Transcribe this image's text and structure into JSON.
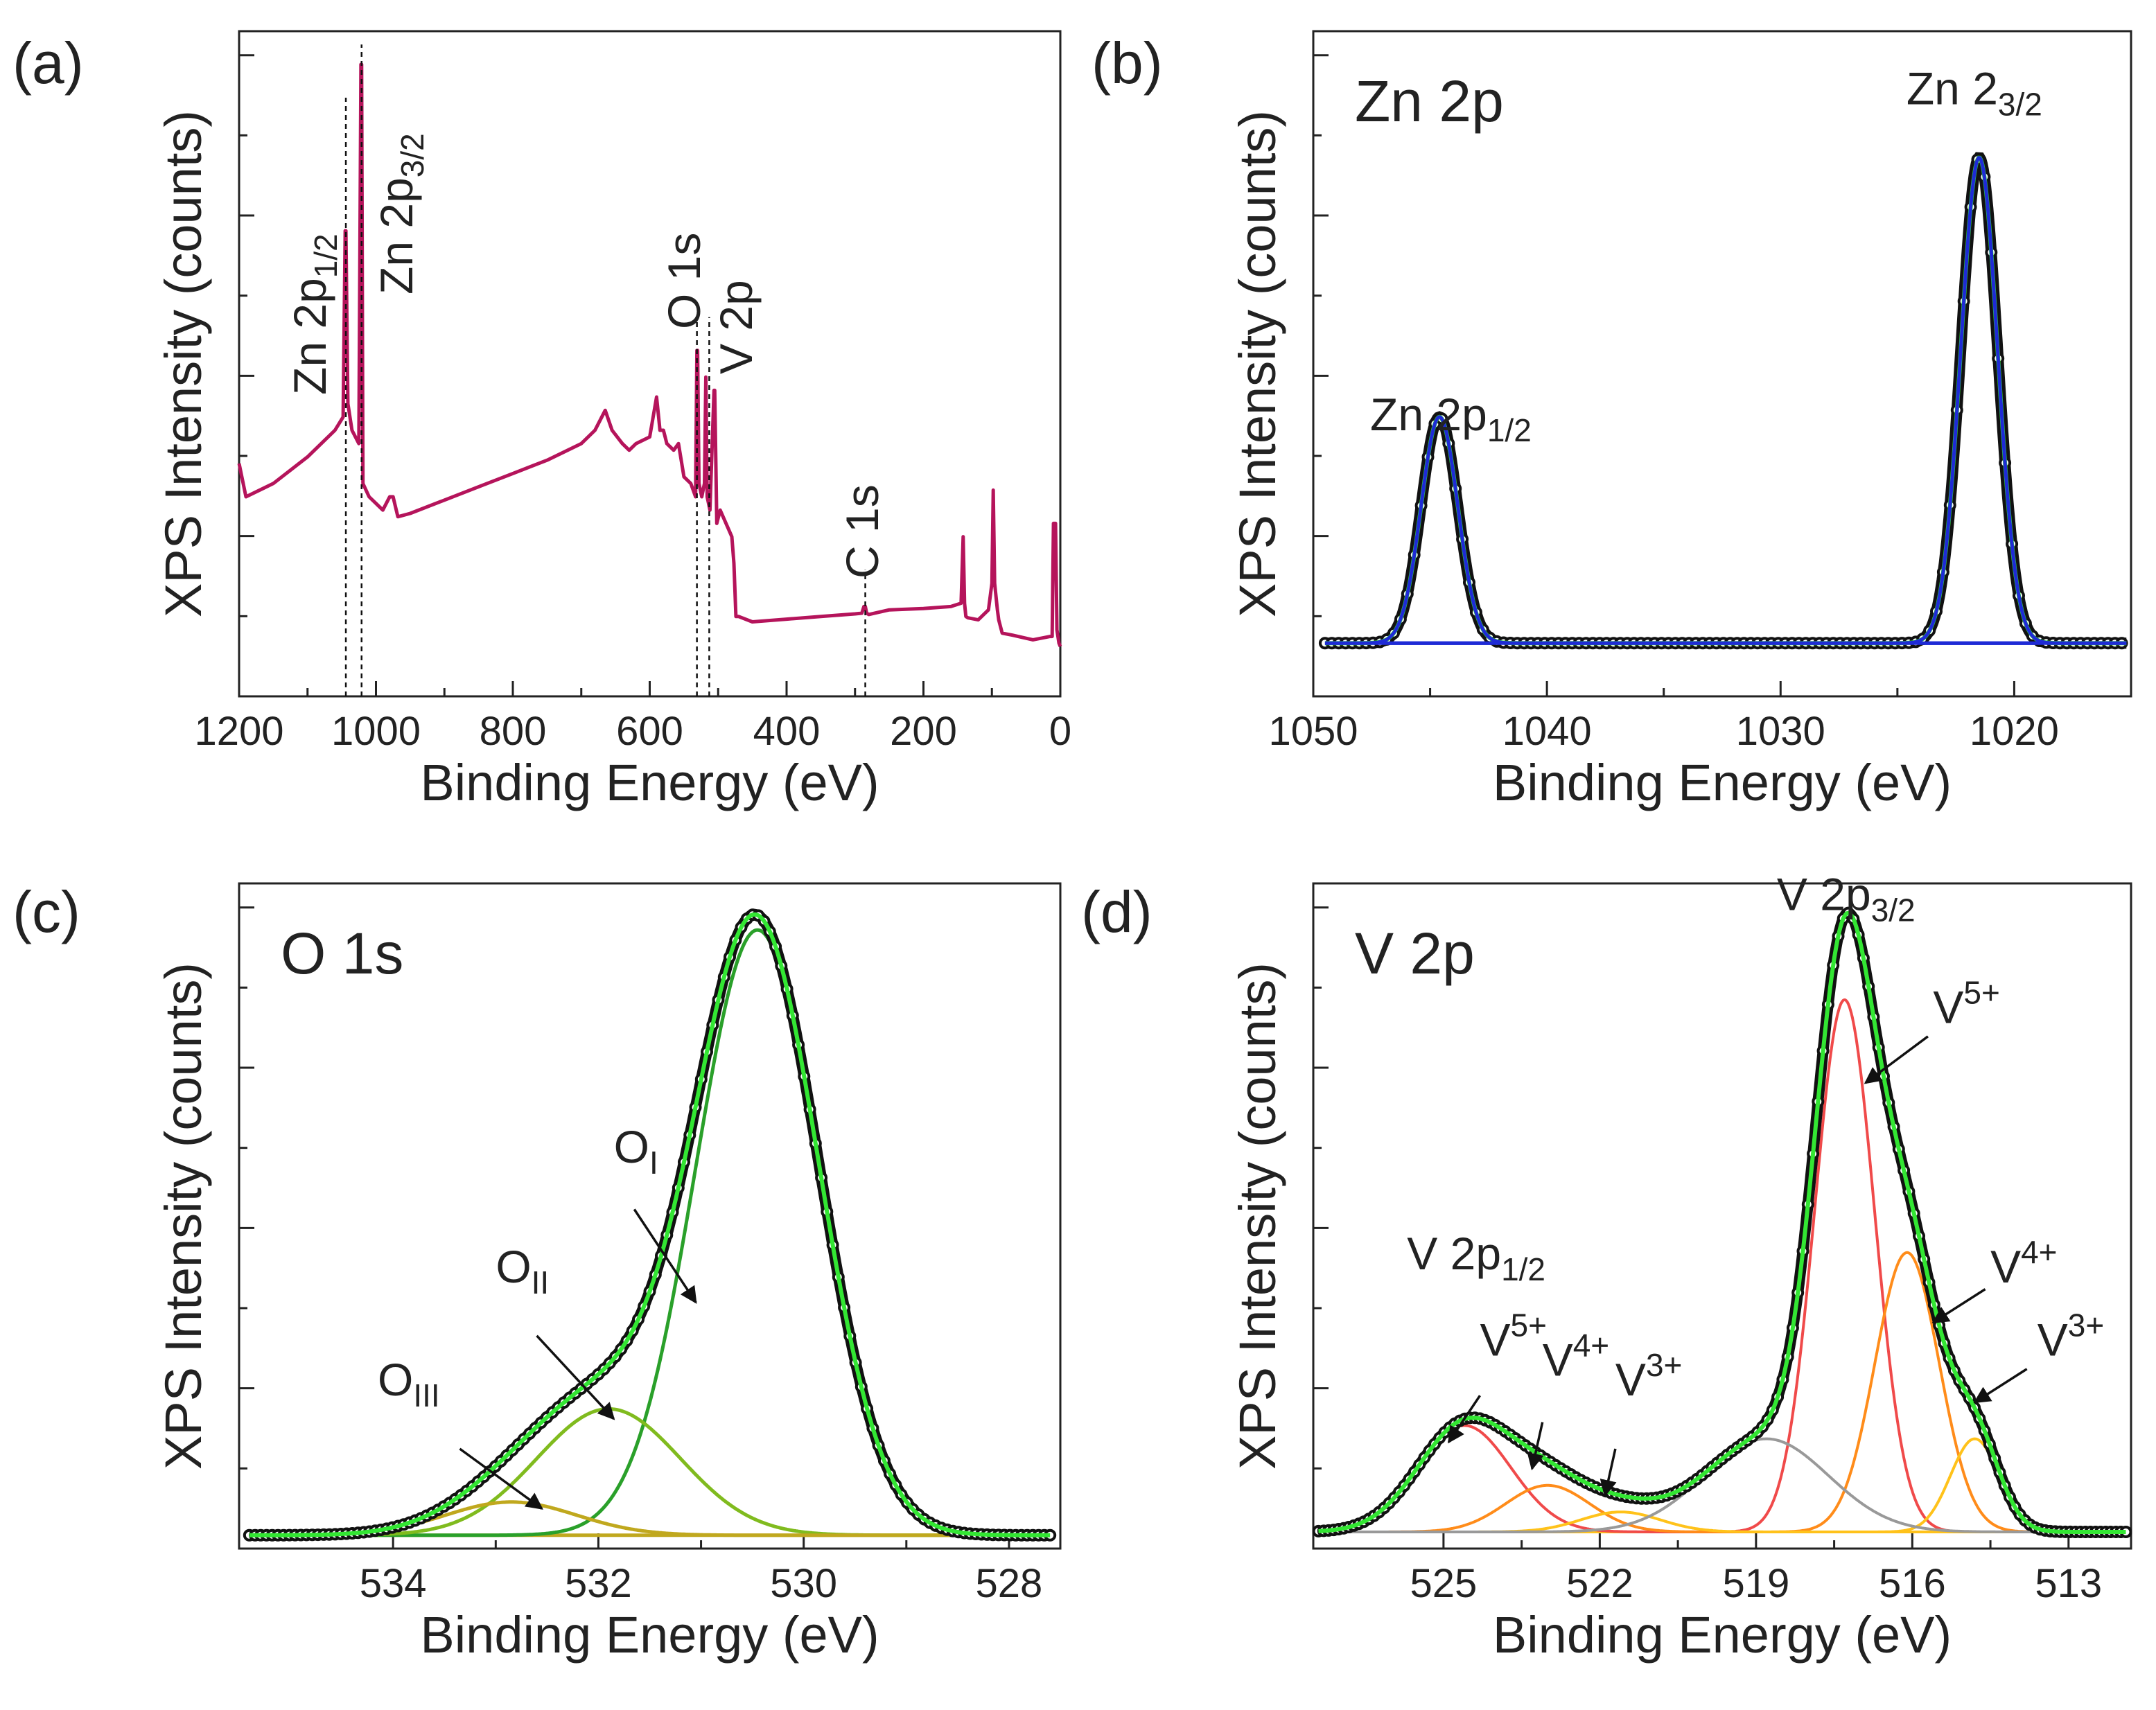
{
  "figure": {
    "panels": [
      {
        "id": "a",
        "letter": "(a)"
      },
      {
        "id": "b",
        "letter": "(b)"
      },
      {
        "id": "c",
        "letter": "(c)"
      },
      {
        "id": "d",
        "letter": "(d)"
      }
    ]
  },
  "colors": {
    "survey": "#b5145b",
    "data": "#111111",
    "envelope": "#33e633",
    "component_blue": "#1f2bd6",
    "O_I": "#2aa02a",
    "O_II": "#80bb1e",
    "O_III": "#c0a81e",
    "V5": "#f04a4a",
    "V4": "#ff8c1a",
    "V3": "#ffc21a",
    "background_gray": "#999999"
  },
  "chart_data": [
    {
      "id": "a",
      "type": "line",
      "title": "",
      "xlabel": "Binding Energy (eV)",
      "ylabel": "XPS Intensity (counts)",
      "xlim": [
        1200,
        0
      ],
      "ylim": [
        0,
        100
      ],
      "xticks": [
        1200,
        1000,
        800,
        600,
        400,
        200,
        0
      ],
      "series": [
        {
          "name": "Survey spectrum",
          "x": [
            1200,
            1190,
            1150,
            1100,
            1060,
            1048,
            1045,
            1044,
            1041,
            1035,
            1025,
            1022,
            1021,
            1019,
            1010,
            1000,
            990,
            980,
            975,
            968,
            950,
            900,
            850,
            800,
            750,
            700,
            680,
            665,
            655,
            640,
            630,
            620,
            600,
            590,
            585,
            580,
            575,
            565,
            558,
            550,
            540,
            533,
            531,
            530,
            528,
            524,
            520,
            518,
            516,
            512,
            506,
            505,
            502,
            497,
            480,
            477,
            474,
            470,
            450,
            400,
            350,
            300,
            290,
            287,
            285,
            283,
            280,
            250,
            200,
            160,
            145,
            142,
            140,
            138,
            135,
            120,
            105,
            100,
            98,
            96,
            92,
            90,
            85,
            70,
            40,
            15,
            12,
            10,
            7,
            5,
            2,
            0
          ],
          "y": [
            35,
            30,
            32,
            36,
            40,
            42,
            70,
            70,
            44,
            40,
            38,
            95,
            95,
            32,
            30,
            29,
            28,
            30,
            30,
            27,
            27.5,
            29.5,
            31.5,
            33.5,
            35.5,
            38,
            40,
            43,
            40,
            38,
            37,
            38,
            39,
            45,
            40,
            40,
            38,
            37,
            38,
            33,
            32,
            30,
            52,
            52,
            32,
            30,
            32,
            48,
            30,
            28,
            46,
            46,
            26,
            28,
            24,
            20,
            12,
            12,
            11.2,
            11.6,
            12,
            12.4,
            12.5,
            13.5,
            13.5,
            12.5,
            12.3,
            13,
            13.2,
            13.5,
            14,
            24,
            14,
            12,
            11.8,
            11.5,
            13,
            17,
            31,
            17,
            13,
            11.5,
            9.5,
            9.2,
            8.5,
            9,
            9,
            26,
            26,
            10,
            8,
            7.5
          ]
        }
      ],
      "reference_lines": [
        1044,
        1021,
        531,
        513,
        285
      ],
      "annotations": [
        {
          "label": "Zn 2p",
          "sub": "1/2",
          "x": 1044
        },
        {
          "label": "Zn 2p",
          "sub": "3/2",
          "x": 1021
        },
        {
          "label": "O 1s",
          "sub": "",
          "x": 531
        },
        {
          "label": "V 2p",
          "sub": "",
          "x": 513
        },
        {
          "label": "C 1s",
          "sub": "",
          "x": 285
        }
      ]
    },
    {
      "id": "b",
      "type": "line",
      "title": "Zn 2p",
      "xlabel": "Binding Energy (eV)",
      "ylabel": "XPS Intensity (counts)",
      "xlim": [
        1050,
        1015
      ],
      "ylim": [
        0,
        100
      ],
      "xticks": [
        1050,
        1040,
        1030,
        1020
      ],
      "peaks": [
        {
          "name": "Zn 2p1/2",
          "center": 1044.6,
          "fwhm": 1.85,
          "height": 34
        },
        {
          "name": "Zn 2p3/2",
          "center": 1021.5,
          "fwhm": 1.85,
          "height": 73
        }
      ],
      "baseline": 8,
      "series": [
        {
          "name": "Measured data",
          "style": "dots"
        },
        {
          "name": "Zn 2p1/2 component",
          "style": "line"
        },
        {
          "name": "Zn 2p3/2 component",
          "style": "line"
        },
        {
          "name": "Fitted envelope",
          "style": "line"
        }
      ],
      "annotations": [
        {
          "label": "Zn 2p",
          "sub": "1/2"
        },
        {
          "label": "Zn 2",
          "sub": "3/2"
        }
      ]
    },
    {
      "id": "c",
      "type": "line",
      "title": "O 1s",
      "xlabel": "Binding Energy (eV)",
      "ylabel": "XPS Intensity (counts)",
      "xlim": [
        535.5,
        527.5
      ],
      "ylim": [
        0,
        100
      ],
      "xticks": [
        534,
        532,
        530,
        528
      ],
      "baseline": 2,
      "peaks": [
        {
          "name": "O_I",
          "center": 530.45,
          "fwhm": 1.42,
          "height": 91
        },
        {
          "name": "O_II",
          "center": 531.9,
          "fwhm": 1.65,
          "height": 19
        },
        {
          "name": "O_III",
          "center": 532.85,
          "fwhm": 1.5,
          "height": 5
        }
      ],
      "series": [
        {
          "name": "Measured data",
          "style": "dots"
        },
        {
          "name": "O_I component",
          "style": "line"
        },
        {
          "name": "O_II component",
          "style": "line"
        },
        {
          "name": "O_III component",
          "style": "line"
        },
        {
          "name": "Fitted envelope",
          "style": "line"
        }
      ],
      "annotations": [
        {
          "label": "O",
          "sub": "I",
          "target_x": 531.0
        },
        {
          "label": "O",
          "sub": "II",
          "target_x": 531.8
        },
        {
          "label": "O",
          "sub": "III",
          "target_x": 532.6
        }
      ]
    },
    {
      "id": "d",
      "type": "line",
      "title": "V 2p",
      "xlabel": "Binding Energy (eV)",
      "ylabel": "XPS Intensity (counts)",
      "xlim": [
        527.5,
        511.8
      ],
      "ylim": [
        0,
        100
      ],
      "xticks": [
        525,
        522,
        519,
        516,
        513
      ],
      "baseline": 2.5,
      "peaks": [
        {
          "name": "V5+ (2p3/2)",
          "center": 517.3,
          "fwhm": 1.35,
          "height": 80
        },
        {
          "name": "V4+ (2p3/2)",
          "center": 516.1,
          "fwhm": 1.45,
          "height": 42
        },
        {
          "name": "V3+ (2p3/2)",
          "center": 514.8,
          "fwhm": 1.1,
          "height": 14
        },
        {
          "name": "V5+ (2p1/2)",
          "center": 524.6,
          "fwhm": 2.1,
          "height": 16
        },
        {
          "name": "V4+ (2p1/2)",
          "center": 523.0,
          "fwhm": 1.9,
          "height": 7
        },
        {
          "name": "V3+ (2p1/2)",
          "center": 521.6,
          "fwhm": 1.8,
          "height": 3
        },
        {
          "name": "Background",
          "center": 518.8,
          "fwhm": 2.8,
          "height": 14
        }
      ],
      "series": [
        {
          "name": "Measured data",
          "style": "dots"
        },
        {
          "name": "Fitted envelope",
          "style": "line"
        }
      ],
      "annotations": [
        {
          "label": "V 2p",
          "sub": "3/2",
          "kind": "sub"
        },
        {
          "label": "V 2p",
          "sub": "1/2",
          "kind": "sub"
        },
        {
          "label": "V",
          "sub": "5+",
          "kind": "sup"
        },
        {
          "label": "V",
          "sub": "4+",
          "kind": "sup"
        },
        {
          "label": "V",
          "sub": "3+",
          "kind": "sup"
        },
        {
          "label": "V",
          "sub": "5+",
          "kind": "sup"
        },
        {
          "label": "V",
          "sub": "4+",
          "kind": "sup"
        },
        {
          "label": "V",
          "sub": "3+",
          "kind": "sup"
        }
      ]
    }
  ]
}
